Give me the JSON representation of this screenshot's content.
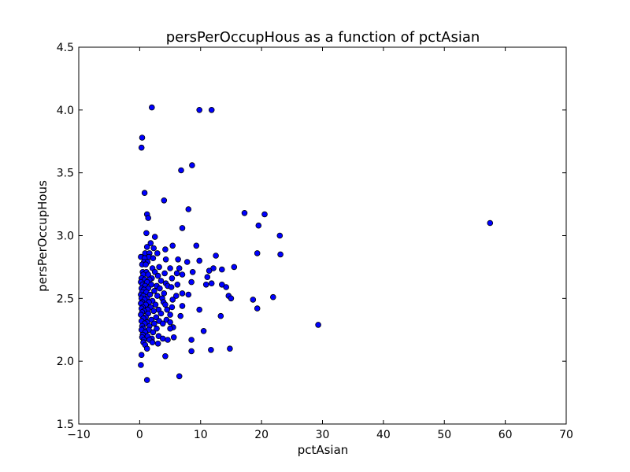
{
  "chart_data": {
    "type": "scatter",
    "title": "persPerOccupHous as a function of pctAsian",
    "xlabel": "pctAsian",
    "ylabel": "persPerOccupHous",
    "xlim": [
      -10,
      70
    ],
    "ylim": [
      1.5,
      4.5
    ],
    "xticks": [
      -10,
      0,
      10,
      20,
      30,
      40,
      50,
      60,
      70
    ],
    "yticks": [
      1.5,
      2.0,
      2.5,
      3.0,
      3.5,
      4.0,
      4.5
    ],
    "xtick_labels": [
      "−10",
      "0",
      "10",
      "20",
      "30",
      "40",
      "50",
      "60",
      "70"
    ],
    "ytick_labels": [
      "1.5",
      "2.0",
      "2.5",
      "3.0",
      "3.5",
      "4.0",
      "4.5"
    ],
    "grid": false,
    "marker_color": "#0000ff",
    "marker_edge": "#000000",
    "points": [
      [
        2.0,
        4.02
      ],
      [
        9.8,
        4.0
      ],
      [
        11.8,
        4.0
      ],
      [
        0.4,
        3.78
      ],
      [
        0.3,
        3.7
      ],
      [
        8.6,
        3.56
      ],
      [
        6.8,
        3.52
      ],
      [
        0.8,
        3.34
      ],
      [
        4.0,
        3.28
      ],
      [
        8.0,
        3.21
      ],
      [
        17.2,
        3.18
      ],
      [
        20.5,
        3.17
      ],
      [
        1.2,
        3.17
      ],
      [
        1.4,
        3.14
      ],
      [
        57.5,
        3.1
      ],
      [
        19.5,
        3.08
      ],
      [
        7.0,
        3.06
      ],
      [
        1.1,
        3.02
      ],
      [
        23.0,
        3.0
      ],
      [
        2.5,
        2.99
      ],
      [
        1.8,
        2.94
      ],
      [
        9.3,
        2.92
      ],
      [
        5.4,
        2.92
      ],
      [
        1.2,
        2.91
      ],
      [
        2.3,
        2.9
      ],
      [
        4.2,
        2.89
      ],
      [
        19.3,
        2.86
      ],
      [
        23.1,
        2.85
      ],
      [
        2.9,
        2.86
      ],
      [
        0.9,
        2.86
      ],
      [
        1.6,
        2.86
      ],
      [
        12.5,
        2.84
      ],
      [
        0.2,
        2.83
      ],
      [
        1.5,
        2.83
      ],
      [
        0.8,
        2.82
      ],
      [
        2.2,
        2.82
      ],
      [
        4.3,
        2.81
      ],
      [
        6.3,
        2.81
      ],
      [
        9.8,
        2.8
      ],
      [
        0.7,
        2.79
      ],
      [
        1.3,
        2.79
      ],
      [
        7.8,
        2.79
      ],
      [
        0.4,
        2.77
      ],
      [
        1.0,
        2.77
      ],
      [
        3.2,
        2.75
      ],
      [
        2.1,
        2.74
      ],
      [
        15.5,
        2.75
      ],
      [
        12.1,
        2.74
      ],
      [
        6.5,
        2.74
      ],
      [
        5.0,
        2.74
      ],
      [
        13.5,
        2.73
      ],
      [
        11.4,
        2.72
      ],
      [
        8.7,
        2.71
      ],
      [
        0.5,
        2.71
      ],
      [
        1.1,
        2.71
      ],
      [
        2.5,
        2.71
      ],
      [
        6.1,
        2.7
      ],
      [
        4.1,
        2.7
      ],
      [
        0.6,
        2.69
      ],
      [
        1.4,
        2.69
      ],
      [
        7.0,
        2.69
      ],
      [
        3.0,
        2.68
      ],
      [
        11.1,
        2.67
      ],
      [
        0.3,
        2.66
      ],
      [
        2.0,
        2.66
      ],
      [
        5.3,
        2.66
      ],
      [
        0.8,
        2.65
      ],
      [
        1.6,
        2.65
      ],
      [
        3.5,
        2.64
      ],
      [
        0.2,
        2.63
      ],
      [
        1.2,
        2.63
      ],
      [
        8.5,
        2.63
      ],
      [
        11.8,
        2.62
      ],
      [
        4.3,
        2.62
      ],
      [
        0.5,
        2.61
      ],
      [
        1.9,
        2.61
      ],
      [
        10.9,
        2.61
      ],
      [
        13.5,
        2.61
      ],
      [
        6.2,
        2.61
      ],
      [
        0.9,
        2.6
      ],
      [
        2.8,
        2.6
      ],
      [
        4.6,
        2.6
      ],
      [
        5.2,
        2.59
      ],
      [
        14.2,
        2.59
      ],
      [
        0.3,
        2.58
      ],
      [
        1.4,
        2.58
      ],
      [
        3.3,
        2.58
      ],
      [
        0.7,
        2.57
      ],
      [
        2.4,
        2.56
      ],
      [
        0.4,
        2.55
      ],
      [
        1.1,
        2.55
      ],
      [
        4.0,
        2.54
      ],
      [
        7.0,
        2.54
      ],
      [
        14.6,
        2.52
      ],
      [
        0.2,
        2.53
      ],
      [
        1.7,
        2.53
      ],
      [
        8.0,
        2.53
      ],
      [
        0.6,
        2.52
      ],
      [
        2.9,
        2.52
      ],
      [
        6.0,
        2.52
      ],
      [
        21.9,
        2.51
      ],
      [
        0.3,
        2.5
      ],
      [
        1.2,
        2.5
      ],
      [
        15.0,
        2.5
      ],
      [
        3.7,
        2.5
      ],
      [
        5.4,
        2.49
      ],
      [
        0.8,
        2.49
      ],
      [
        2.1,
        2.48
      ],
      [
        18.6,
        2.49
      ],
      [
        0.4,
        2.47
      ],
      [
        1.5,
        2.47
      ],
      [
        3.9,
        2.47
      ],
      [
        0.2,
        2.46
      ],
      [
        1.0,
        2.45
      ],
      [
        2.6,
        2.45
      ],
      [
        4.2,
        2.45
      ],
      [
        7.0,
        2.44
      ],
      [
        0.5,
        2.43
      ],
      [
        1.8,
        2.43
      ],
      [
        5.3,
        2.43
      ],
      [
        0.3,
        2.42
      ],
      [
        19.3,
        2.42
      ],
      [
        1.3,
        2.41
      ],
      [
        3.1,
        2.41
      ],
      [
        4.5,
        2.41
      ],
      [
        9.8,
        2.41
      ],
      [
        0.7,
        2.4
      ],
      [
        2.3,
        2.4
      ],
      [
        0.4,
        2.39
      ],
      [
        1.4,
        2.38
      ],
      [
        3.5,
        2.38
      ],
      [
        5.0,
        2.37
      ],
      [
        0.2,
        2.37
      ],
      [
        13.3,
        2.36
      ],
      [
        6.7,
        2.36
      ],
      [
        1.0,
        2.35
      ],
      [
        2.7,
        2.35
      ],
      [
        0.6,
        2.34
      ],
      [
        1.9,
        2.33
      ],
      [
        4.4,
        2.33
      ],
      [
        0.3,
        2.32
      ],
      [
        3.2,
        2.32
      ],
      [
        1.2,
        2.31
      ],
      [
        5.0,
        2.31
      ],
      [
        0.8,
        2.3
      ],
      [
        2.4,
        2.3
      ],
      [
        3.8,
        2.3
      ],
      [
        29.3,
        2.29
      ],
      [
        0.4,
        2.28
      ],
      [
        1.6,
        2.28
      ],
      [
        5.5,
        2.27
      ],
      [
        0.6,
        2.26
      ],
      [
        2.8,
        2.26
      ],
      [
        5.0,
        2.26
      ],
      [
        0.3,
        2.25
      ],
      [
        1.5,
        2.25
      ],
      [
        10.5,
        2.24
      ],
      [
        0.9,
        2.23
      ],
      [
        2.2,
        2.23
      ],
      [
        0.5,
        2.21
      ],
      [
        1.3,
        2.2
      ],
      [
        3.1,
        2.2
      ],
      [
        0.4,
        2.19
      ],
      [
        5.6,
        2.19
      ],
      [
        2.0,
        2.18
      ],
      [
        3.8,
        2.18
      ],
      [
        4.6,
        2.17
      ],
      [
        0.7,
        2.17
      ],
      [
        1.6,
        2.17
      ],
      [
        8.5,
        2.17
      ],
      [
        0.6,
        2.15
      ],
      [
        2.1,
        2.15
      ],
      [
        3.0,
        2.14
      ],
      [
        0.9,
        2.13
      ],
      [
        1.2,
        2.1
      ],
      [
        14.8,
        2.1
      ],
      [
        11.7,
        2.09
      ],
      [
        8.5,
        2.08
      ],
      [
        0.3,
        2.05
      ],
      [
        4.2,
        2.04
      ],
      [
        0.2,
        1.97
      ],
      [
        6.5,
        1.88
      ],
      [
        1.2,
        1.85
      ]
    ]
  }
}
